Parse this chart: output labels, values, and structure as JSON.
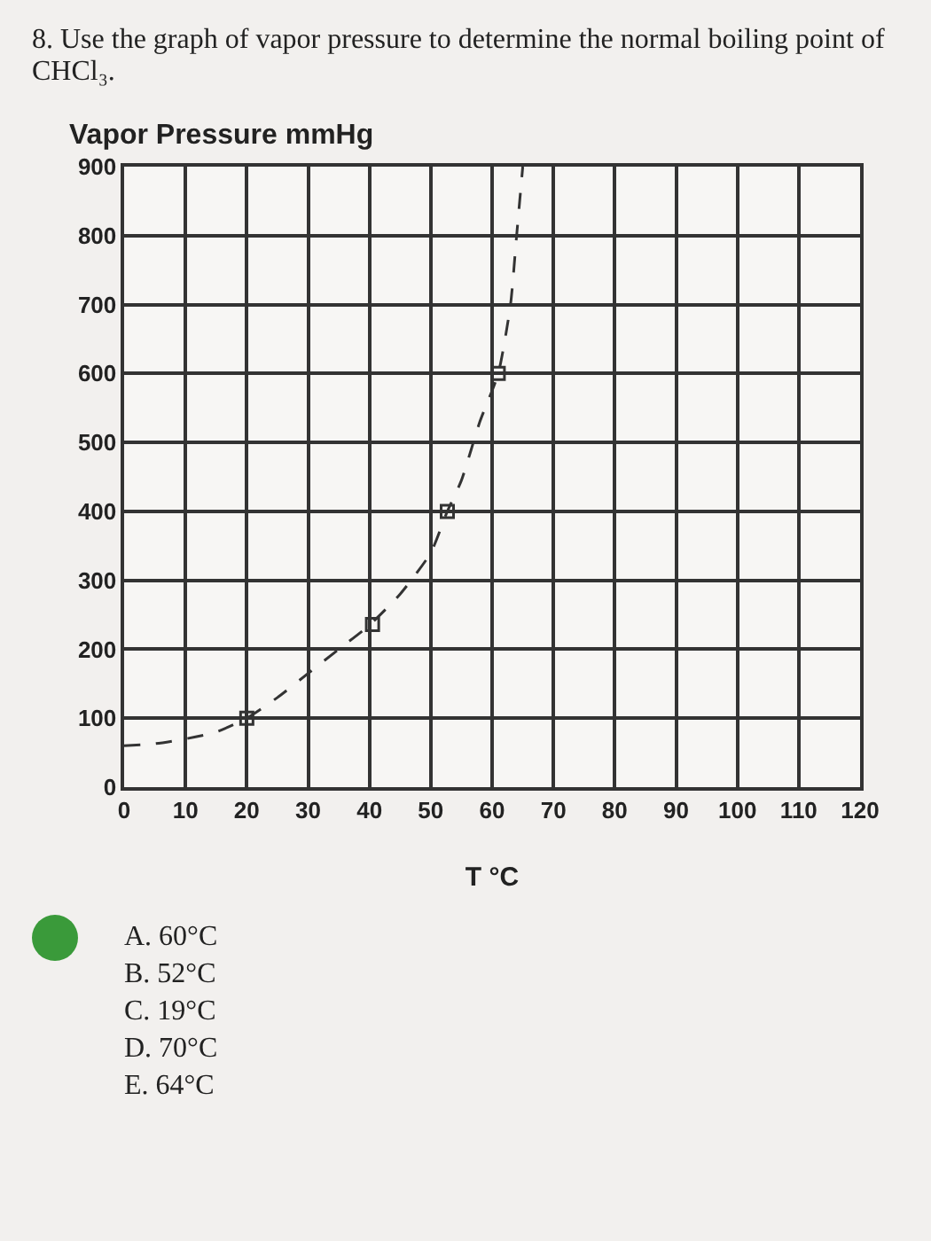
{
  "chart_data": {
    "type": "line",
    "title": "8. Use the graph of vapor pressure to determine the normal boiling point of CHCl₃.",
    "xlabel": "T °C",
    "ylabel": "Vapor Pressure mmHg",
    "series": [
      {
        "color": "#333333",
        "line_style": "dashed",
        "marker": "none",
        "x": [
          0,
          5,
          10,
          15,
          20,
          25,
          30,
          35,
          40,
          45,
          50,
          52.7,
          55,
          58,
          61,
          63,
          64,
          65
        ],
        "values": [
          60,
          63,
          70,
          80,
          100,
          130,
          165,
          200,
          235,
          280,
          340,
          400,
          445,
          530,
          600,
          700,
          800,
          900
        ]
      },
      {
        "type": "scatter",
        "color": "#333333",
        "marker": "square",
        "x": [
          20,
          40.5,
          52.7,
          61
        ],
        "values": [
          100,
          236,
          400,
          600
        ]
      }
    ],
    "xlim": [
      0,
      120
    ],
    "xticks": [
      0,
      10,
      20,
      30,
      40,
      50,
      60,
      70,
      80,
      90,
      100,
      110,
      120
    ],
    "ylim": [
      0,
      900
    ],
    "yticks": [
      0,
      100,
      200,
      300,
      400,
      500,
      600,
      700,
      800,
      900
    ],
    "grid": true,
    "annotations": [
      "A. 60°C",
      "B. 52°C",
      "C. 19°C",
      "D. 70°C",
      "E. 64°C"
    ]
  }
}
